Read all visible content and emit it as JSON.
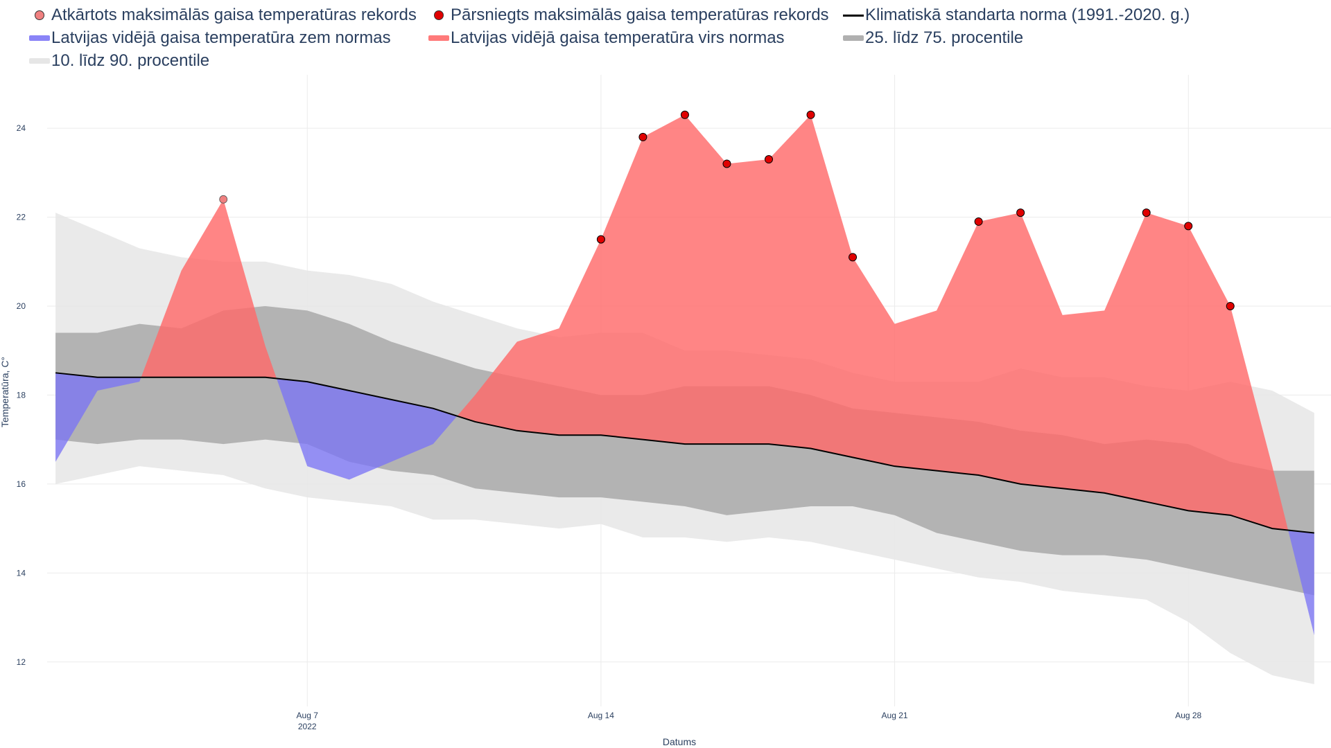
{
  "chart_data": {
    "type": "area",
    "title": "",
    "xlabel": "Datums",
    "ylabel": "Temperatūra, C°",
    "ylim": [
      11,
      25.2
    ],
    "y_ticks": [
      12,
      14,
      16,
      18,
      20,
      22,
      24
    ],
    "x_range_days": [
      0.8,
      31.4
    ],
    "x_ticks": [
      {
        "day": 7,
        "label": "Aug 7",
        "sub": "2022"
      },
      {
        "day": 14,
        "label": "Aug 14",
        "sub": ""
      },
      {
        "day": 21,
        "label": "Aug 21",
        "sub": ""
      },
      {
        "day": 28,
        "label": "Aug 28",
        "sub": ""
      }
    ],
    "days": [
      1,
      2,
      3,
      4,
      5,
      6,
      7,
      8,
      9,
      10,
      11,
      12,
      13,
      14,
      15,
      16,
      17,
      18,
      19,
      20,
      21,
      22,
      23,
      24,
      25,
      26,
      27,
      28,
      29,
      30,
      31
    ],
    "series": [
      {
        "name": "10. līdz 90. procentile",
        "color": "#e6e6e6",
        "upper": [
          22.1,
          21.7,
          21.3,
          21.1,
          21.0,
          21.0,
          20.8,
          20.7,
          20.5,
          20.1,
          19.8,
          19.5,
          19.3,
          19.4,
          19.4,
          19.0,
          19.0,
          18.9,
          18.8,
          18.5,
          18.3,
          18.3,
          18.3,
          18.6,
          18.4,
          18.4,
          18.2,
          18.1,
          18.3,
          18.1,
          17.6
        ],
        "lower": [
          16.0,
          16.2,
          16.4,
          16.3,
          16.2,
          15.9,
          15.7,
          15.6,
          15.5,
          15.2,
          15.2,
          15.1,
          15.0,
          15.1,
          14.8,
          14.8,
          14.7,
          14.8,
          14.7,
          14.5,
          14.3,
          14.1,
          13.9,
          13.8,
          13.6,
          13.5,
          13.4,
          12.9,
          12.2,
          11.7,
          11.5
        ]
      },
      {
        "name": "25. līdz 75. procentile",
        "color": "#b0b0b0",
        "upper": [
          19.4,
          19.4,
          19.6,
          19.5,
          19.9,
          20.0,
          19.9,
          19.6,
          19.2,
          18.9,
          18.6,
          18.4,
          18.2,
          18.0,
          18.0,
          18.2,
          18.2,
          18.2,
          18.0,
          17.7,
          17.6,
          17.5,
          17.4,
          17.2,
          17.1,
          16.9,
          17.0,
          16.9,
          16.5,
          16.3,
          16.3
        ],
        "lower": [
          17.0,
          16.9,
          17.0,
          17.0,
          16.9,
          17.0,
          16.9,
          16.5,
          16.3,
          16.2,
          15.9,
          15.8,
          15.7,
          15.7,
          15.6,
          15.5,
          15.3,
          15.4,
          15.5,
          15.5,
          15.3,
          14.9,
          14.7,
          14.5,
          14.4,
          14.4,
          14.3,
          14.1,
          13.9,
          13.7,
          13.5
        ]
      },
      {
        "name": "Klimatiskā standarta norma (1991.-2020. g.)",
        "color": "#000000",
        "values": [
          18.5,
          18.4,
          18.4,
          18.4,
          18.4,
          18.4,
          18.3,
          18.1,
          17.9,
          17.7,
          17.4,
          17.2,
          17.1,
          17.1,
          17.0,
          16.9,
          16.9,
          16.9,
          16.8,
          16.6,
          16.4,
          16.3,
          16.2,
          16.0,
          15.9,
          15.8,
          15.6,
          15.4,
          15.3,
          15.0,
          14.9
        ]
      },
      {
        "name": "Latvijas vidējā gaisa temperatūra",
        "above_name": "Latvijas vidējā gaisa temperatūra virs normas",
        "below_name": "Latvijas vidējā gaisa temperatūra zem normas",
        "above_color": "#ff6a6a",
        "below_color": "#7b74f5",
        "values": [
          16.5,
          18.1,
          18.3,
          20.8,
          22.4,
          19.1,
          16.4,
          16.1,
          16.5,
          16.9,
          18.0,
          19.2,
          19.5,
          21.5,
          23.8,
          24.3,
          23.2,
          23.3,
          24.3,
          21.1,
          19.6,
          19.9,
          21.9,
          22.1,
          19.8,
          19.9,
          22.1,
          21.8,
          20.0,
          16.4,
          12.6
        ]
      },
      {
        "name": "Atkārtots maksimālās gaisa temperatūras rekords",
        "color": "#f08080",
        "points": [
          {
            "day": 5,
            "value": 22.4
          }
        ]
      },
      {
        "name": "Pārsniegts maksimālās gaisa temperatūras rekords",
        "color": "#e00000",
        "points": [
          {
            "day": 14,
            "value": 21.5
          },
          {
            "day": 15,
            "value": 23.8
          },
          {
            "day": 16,
            "value": 24.3
          },
          {
            "day": 17,
            "value": 23.2
          },
          {
            "day": 18,
            "value": 23.3
          },
          {
            "day": 19,
            "value": 24.3
          },
          {
            "day": 20,
            "value": 21.1
          },
          {
            "day": 23,
            "value": 21.9
          },
          {
            "day": 24,
            "value": 22.1
          },
          {
            "day": 27,
            "value": 22.1
          },
          {
            "day": 28,
            "value": 21.8
          },
          {
            "day": 29,
            "value": 20.0
          }
        ]
      }
    ]
  },
  "legend": {
    "items": [
      {
        "label": "Atkārtots maksimālās gaisa temperatūras rekords",
        "color": "#f08080",
        "kind": "dot"
      },
      {
        "label": "Pārsniegts maksimālās gaisa temperatūras rekords",
        "color": "#e00000",
        "kind": "dot"
      },
      {
        "label": "Klimatiskā standarta norma (1991.-2020. g.)",
        "color": "#000000",
        "kind": "line"
      },
      {
        "label": "Latvijas vidējā gaisa temperatūra zem normas",
        "color": "#8a84f7",
        "kind": "band"
      },
      {
        "label": "Latvijas vidējā gaisa temperatūra virs normas",
        "color": "#ff7a7a",
        "kind": "band"
      },
      {
        "label": "25. līdz 75. procentile",
        "color": "#b0b0b0",
        "kind": "band"
      },
      {
        "label": "10. līdz 90. procentile",
        "color": "#e6e6e6",
        "kind": "band"
      }
    ]
  }
}
